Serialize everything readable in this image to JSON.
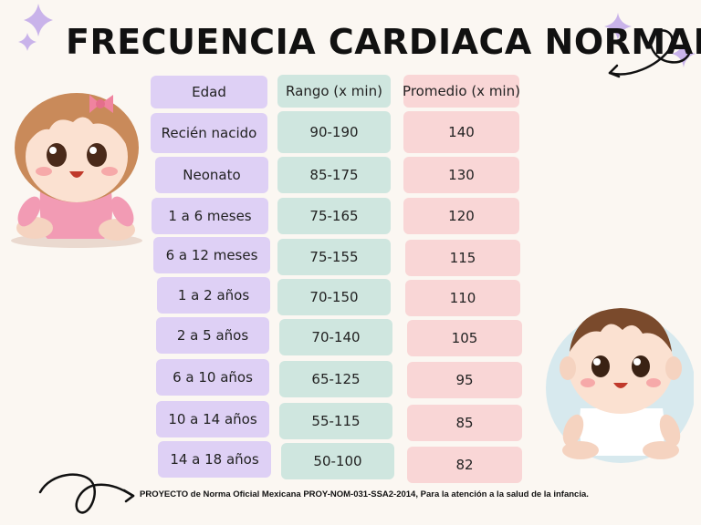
{
  "title": "FRECUENCIA CARDIACA NORMAL",
  "table": {
    "headers": [
      "Edad",
      "Rango (x min)",
      "Promedio (x min)"
    ],
    "rows": [
      {
        "edad": "Recién nacido",
        "rango": "90-190",
        "promedio": "140"
      },
      {
        "edad": "Neonato",
        "rango": "85-175",
        "promedio": "130"
      },
      {
        "edad": "1 a 6 meses",
        "rango": "75-165",
        "promedio": "120"
      },
      {
        "edad": "6 a 12 meses",
        "rango": "75-155",
        "promedio": "115"
      },
      {
        "edad": "1 a 2 años",
        "rango": "70-150",
        "promedio": "110"
      },
      {
        "edad": "2 a 5 años",
        "rango": "70-140",
        "promedio": "105"
      },
      {
        "edad": "6 a 10 años",
        "rango": "65-125",
        "promedio": "95"
      },
      {
        "edad": "10 a 14 años",
        "rango": "55-115",
        "promedio": "85"
      },
      {
        "edad": "14 a 18 años",
        "rango": "50-100",
        "promedio": "82"
      }
    ]
  },
  "footnote": "PROYECTO de Norma Oficial Mexicana PROY-NOM-031-SSA2-2014, Para la atención a la salud de la infancia.",
  "colors": {
    "edad": "#ded0f5",
    "rango": "#cfe6df",
    "promedio": "#f9d6d6",
    "sparkle": "#c9b3ea"
  },
  "icons": [
    "sparkle-icon",
    "curly-arrow-icon",
    "baby-girl-illustration",
    "baby-boy-illustration"
  ]
}
